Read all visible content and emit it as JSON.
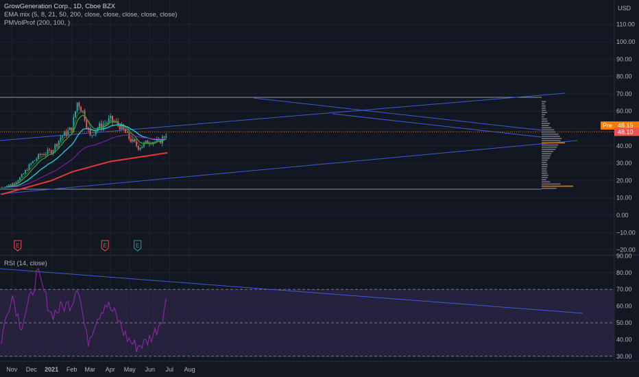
{
  "legend": {
    "symbol": "GrowGeneration Corp., 1D, Cboe BZX",
    "ema": "EMA mix (5, 8, 21, 50, 200, close, close, close, close, close)",
    "vp": "PMVolProf (200, 100, )",
    "rsi": "RSI (14, close)"
  },
  "axis": {
    "currency": "USD",
    "price_ticks": [
      "110.00",
      "100.00",
      "90.00",
      "80.00",
      "70.00",
      "60.00",
      "50.00",
      "40.00",
      "30.00",
      "20.00",
      "10.00",
      "0.00",
      "−10.00",
      "−20.00"
    ],
    "rsi_ticks": [
      "90.00",
      "80.00",
      "70.00",
      "60.00",
      "50.00",
      "40.00",
      "30.00"
    ],
    "months": [
      "Nov",
      "Dec",
      "2021",
      "Feb",
      "Mar",
      "Apr",
      "May",
      "Jun",
      "Jul",
      "Aug"
    ]
  },
  "badges": {
    "pre_label": "Pre",
    "pre_value": "48.15",
    "last_value": "48.10",
    "earnings_letter": "E"
  },
  "colors": {
    "bg": "#131722",
    "grid": "#1e222d",
    "up": "#26a69a",
    "down": "#ef5350",
    "ema5": "#2e7d32",
    "ema8": "#43a047",
    "ema21": "#26c6da",
    "ema50": "#7b1fa2",
    "ema200": "#e53935",
    "trend": "#3f5bd9",
    "rsi": "#9c27b0",
    "vp": "#787b86",
    "vp_poc": "#f57c00"
  },
  "chart_data": [
    {
      "type": "line",
      "title": "GrowGeneration Corp., 1D, Cboe BZX",
      "ylim": [
        -22,
        117
      ],
      "x_axis": [
        "Nov",
        "Dec",
        "2021",
        "Feb",
        "Mar",
        "Apr",
        "May",
        "Jun",
        "Jul",
        "Aug"
      ],
      "series": [
        {
          "name": "close",
          "x": [
            "2020-10-16",
            "2020-11-01",
            "2020-11-15",
            "2020-12-01",
            "2020-12-15",
            "2021-01-01",
            "2021-01-15",
            "2021-02-01",
            "2021-02-10",
            "2021-02-20",
            "2021-03-01",
            "2021-03-10",
            "2021-03-20",
            "2021-04-01",
            "2021-04-15",
            "2021-05-01",
            "2021-05-15",
            "2021-06-01",
            "2021-06-15",
            "2021-06-28"
          ],
          "values": [
            16,
            18,
            22,
            30,
            35,
            37,
            45,
            50,
            66,
            58,
            45,
            50,
            52,
            55,
            52,
            44,
            39,
            43,
            42,
            48.1
          ]
        },
        {
          "name": "EMA 200",
          "x": [
            "2020-10-16",
            "2021-01-01",
            "2021-02-01",
            "2021-04-01",
            "2021-06-28"
          ],
          "values": [
            12,
            20,
            25,
            31,
            36
          ]
        },
        {
          "name": "Volume profile levels (POC)",
          "values": [
            17,
            42
          ]
        }
      ],
      "annotations": {
        "pre_market": 48.15,
        "last": 48.1,
        "range_high": 68,
        "range_low": 15
      }
    },
    {
      "type": "line",
      "title": "RSI (14, close)",
      "ylim": [
        28,
        95
      ],
      "bands": [
        30,
        50,
        70
      ],
      "series": [
        {
          "name": "RSI",
          "x": [
            "2020-10-16",
            "2020-11-01",
            "2020-11-15",
            "2020-12-01",
            "2020-12-10",
            "2021-01-01",
            "2021-01-20",
            "2021-02-01",
            "2021-02-10",
            "2021-02-25",
            "2021-03-10",
            "2021-03-25",
            "2021-04-10",
            "2021-04-25",
            "2021-05-10",
            "2021-05-25",
            "2021-06-10",
            "2021-06-20",
            "2021-06-28"
          ],
          "values": [
            40,
            68,
            48,
            66,
            80,
            55,
            60,
            62,
            74,
            38,
            52,
            62,
            54,
            42,
            36,
            38,
            45,
            54,
            66
          ]
        }
      ]
    }
  ]
}
